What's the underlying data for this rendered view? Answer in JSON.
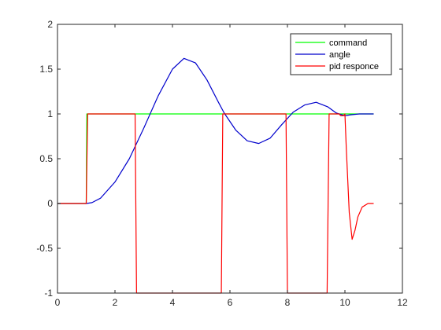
{
  "chart_data": {
    "type": "line",
    "title": "",
    "xlabel": "",
    "ylabel": "",
    "xlim": [
      0,
      12
    ],
    "ylim": [
      -1,
      2
    ],
    "grid": false,
    "legend_position": "top-right",
    "x_ticks": [
      0,
      2,
      4,
      6,
      8,
      10,
      12
    ],
    "x_tick_labels": [
      "0",
      "2",
      "4",
      "6",
      "8",
      "10",
      "12"
    ],
    "y_ticks": [
      -1,
      -0.5,
      0,
      0.5,
      1,
      1.5,
      2
    ],
    "y_tick_labels": [
      "-1",
      "-0.5",
      "0",
      "0.5",
      "1",
      "1.5",
      "2"
    ],
    "series": [
      {
        "name": "command",
        "color": "#00ff00",
        "x": [
          0,
          1,
          1.02,
          11
        ],
        "y": [
          0,
          0,
          1,
          1
        ]
      },
      {
        "name": "angle",
        "color": "#0000cc",
        "x": [
          0,
          1,
          1.2,
          1.5,
          2.0,
          2.5,
          3.0,
          3.5,
          4.0,
          4.4,
          4.8,
          5.2,
          5.6,
          5.8,
          6.2,
          6.6,
          7.0,
          7.4,
          7.8,
          8.2,
          8.6,
          9.0,
          9.4,
          9.7,
          10.0,
          10.2,
          10.5,
          11.0
        ],
        "y": [
          0,
          0,
          0.01,
          0.06,
          0.24,
          0.5,
          0.84,
          1.2,
          1.5,
          1.62,
          1.57,
          1.38,
          1.13,
          1.01,
          0.82,
          0.7,
          0.67,
          0.73,
          0.88,
          1.02,
          1.1,
          1.13,
          1.08,
          1.01,
          0.98,
          0.99,
          1.0,
          1.0
        ]
      },
      {
        "name": "pid responce",
        "color": "#ff0000",
        "x": [
          0,
          1.0,
          1.05,
          2.7,
          2.75,
          5.7,
          5.75,
          7.95,
          8.0,
          9.38,
          9.45,
          9.8,
          9.85,
          9.95,
          10.0,
          10.05,
          10.15,
          10.25,
          10.35,
          10.45,
          10.6,
          10.8,
          11.0
        ],
        "y": [
          0,
          0,
          1,
          1,
          -1,
          -1,
          1,
          1,
          -1,
          -1,
          1,
          1,
          0.98,
          0.98,
          1.0,
          0.6,
          -0.1,
          -0.4,
          -0.3,
          -0.15,
          -0.04,
          0,
          0
        ]
      }
    ]
  }
}
